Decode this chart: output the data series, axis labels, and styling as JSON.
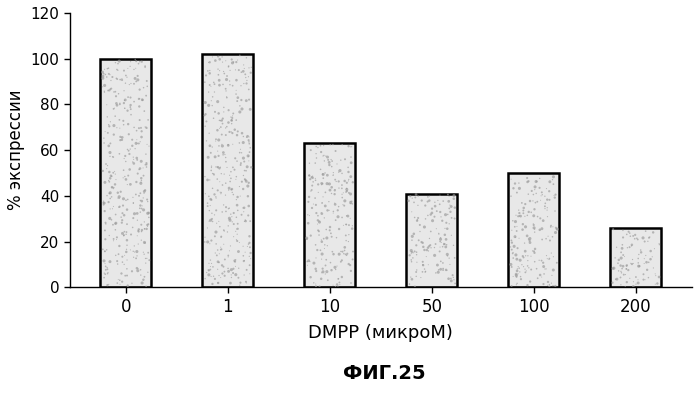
{
  "categories": [
    "0",
    "1",
    "10",
    "50",
    "100",
    "200"
  ],
  "values": [
    100,
    102,
    63,
    41,
    50,
    26
  ],
  "xlabel": "DMPP (микроМ)",
  "ylabel": "% экспрессии",
  "title": "ФИГ.25",
  "ylim": [
    0,
    120
  ],
  "yticks": [
    0,
    20,
    40,
    60,
    80,
    100,
    120
  ],
  "bar_color": "#e8e8e8",
  "bar_edge_color": "#000000",
  "background_color": "#ffffff",
  "dot_color": "#999999",
  "bar_width": 0.5
}
